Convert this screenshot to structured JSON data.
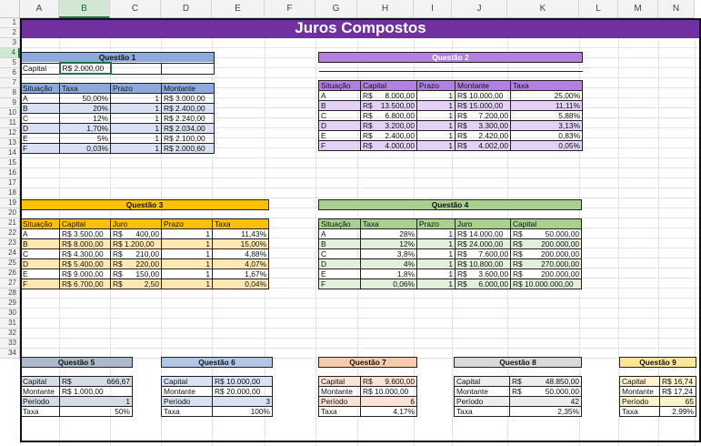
{
  "app": {
    "title": "Juros Compostos"
  },
  "columns": [
    "A",
    "B",
    "C",
    "D",
    "E",
    "F",
    "G",
    "H",
    "I",
    "J",
    "K",
    "L",
    "M",
    "N"
  ],
  "rows": [
    "1",
    "2",
    "3",
    "4",
    "5",
    "6",
    "7",
    "8",
    "9",
    "10",
    "11",
    "12",
    "13",
    "14",
    "15",
    "16",
    "17",
    "18",
    "19",
    "20",
    "21",
    "22",
    "23",
    "24",
    "25",
    "26",
    "27",
    "28",
    "29",
    "30",
    "31",
    "32",
    "33",
    "34"
  ],
  "selection": {
    "cell": "B4"
  },
  "colors": {
    "title_bg": "#7030a0",
    "q1": "#8ea9db",
    "q1_band": "#d9e1f2",
    "q2": "#b180e0",
    "q2_band": "#e4d2f6",
    "q3": "#ffc000",
    "q3_band": "#ffe7b3",
    "q4": "#a9d08e",
    "q4_band": "#e2efda",
    "q5": "#acb9ca",
    "q6": "#b4c6e7",
    "q7": "#f8cbad",
    "q8": "#d9d9d9",
    "q9": "#ffe699"
  },
  "q1": {
    "title": "Questão 1",
    "capital_label": "Capital",
    "capital_value": "R$ 2.000,00",
    "headers": [
      "Situação",
      "Taxa",
      "Prazo",
      "Montante"
    ],
    "rows": [
      [
        "A",
        "50,00%",
        "1",
        "R$ 3.000,00"
      ],
      [
        "B",
        "20%",
        "1",
        "R$ 2.400,00"
      ],
      [
        "C",
        "12%",
        "1",
        "R$ 2.240,00"
      ],
      [
        "D",
        "1,70%",
        "1",
        "R$ 2.034,00"
      ],
      [
        "E",
        "5%",
        "1",
        "R$ 2.100,00"
      ],
      [
        "F",
        "0,03%",
        "1",
        "R$ 2.000,60"
      ]
    ]
  },
  "q2": {
    "title": "Questão 2",
    "headers": [
      "Situação",
      "Capital",
      "Prazo",
      "Montante",
      "Taxa"
    ],
    "rows": [
      [
        "A",
        "R$",
        "8.000,00",
        "1",
        "R$ 10.000,00",
        "25,00%"
      ],
      [
        "B",
        "R$",
        "13.500,00",
        "1",
        "R$ 15.000,00",
        "11,11%"
      ],
      [
        "C",
        "R$",
        "6.800,00",
        "1",
        "R$",
        "7.200,00",
        "5,88%"
      ],
      [
        "D",
        "R$",
        "3.200,00",
        "1",
        "R$",
        "3.300,00",
        "3,13%"
      ],
      [
        "E",
        "R$",
        "2.400,00",
        "1",
        "R$",
        "2.420,00",
        "0,83%"
      ],
      [
        "F",
        "R$",
        "4.000,00",
        "1",
        "R$",
        "4.002,00",
        "0,05%"
      ]
    ]
  },
  "q3": {
    "title": "Questão 3",
    "headers": [
      "Situação",
      "Capital",
      "Juro",
      "Prazo",
      "Taxa"
    ],
    "rows": [
      [
        "A",
        "R$ 3.500,00",
        "R$",
        "400,00",
        "1",
        "11,43%"
      ],
      [
        "B",
        "R$ 8.000,00",
        "R$ 1.200,00",
        "",
        "1",
        "15,00%"
      ],
      [
        "C",
        "R$ 4.300,00",
        "R$",
        "210,00",
        "1",
        "4,88%"
      ],
      [
        "D",
        "R$ 5.400,00",
        "R$",
        "220,00",
        "1",
        "4,07%"
      ],
      [
        "E",
        "R$ 9.000,00",
        "R$",
        "150,00",
        "1",
        "1,67%"
      ],
      [
        "F",
        "R$ 6.700,00",
        "R$",
        "2,50",
        "1",
        "0,04%"
      ]
    ]
  },
  "q4": {
    "title": "Questão 4",
    "headers": [
      "Situação",
      "Taxa",
      "Prazo",
      "Juro",
      "Capital"
    ],
    "rows": [
      [
        "A",
        "28%",
        "1",
        "R$ 14.000,00",
        "R$",
        "50.000,00"
      ],
      [
        "B",
        "12%",
        "1",
        "R$ 24.000,00",
        "R$",
        "200.000,00"
      ],
      [
        "C",
        "3,8%",
        "1",
        "R$",
        "7.600,00",
        "R$",
        "200.000,00"
      ],
      [
        "D",
        "4%",
        "1",
        "R$ 10.800,00",
        "R$",
        "270.000,00"
      ],
      [
        "E",
        "1,8%",
        "1",
        "R$",
        "3.600,00",
        "R$",
        "200.000,00"
      ],
      [
        "F",
        "0,06%",
        "1",
        "R$",
        "6.000,00",
        "R$ 10.000.000,00"
      ]
    ]
  },
  "q5": {
    "title": "Questão 5",
    "capital_label": "Capital",
    "capital_cur": "R$",
    "capital_value": "666,67",
    "montante_label": "Montante",
    "montante_value": "R$ 1.000,00",
    "periodo_label": "Período",
    "periodo_value": "1",
    "taxa_label": "Taxa",
    "taxa_value": "50%"
  },
  "q6": {
    "title": "Questão 6",
    "capital_label": "Capital",
    "capital_value": "R$ 10.000,00",
    "montante_label": "Montante",
    "montante_value": "R$ 20.000,00",
    "periodo_label": "Período",
    "periodo_value": "3",
    "taxa_label": "Taxa",
    "taxa_value": "100%"
  },
  "q7": {
    "title": "Questão 7",
    "capital_label": "Capital",
    "capital_cur": "R$",
    "capital_value": "9.600,00",
    "montante_label": "Montante",
    "montante_value": "R$ 10.000,00",
    "periodo_label": "Período",
    "periodo_value": "6",
    "taxa_label": "Taxa",
    "taxa_value": "4,17%"
  },
  "q8": {
    "title": "Questão 8",
    "capital_label": "Capital",
    "capital_cur": "R$",
    "capital_value": "48.850,00",
    "montante_label": "Montante",
    "montante_cur": "R$",
    "montante_value": "50.000,00",
    "periodo_label": "Período",
    "periodo_value": "42",
    "taxa_label": "Taxa",
    "taxa_value": "2,35%"
  },
  "q9": {
    "title": "Questão 9",
    "capital_label": "Capital",
    "capital_value": "R$ 16,74",
    "montante_label": "Montante",
    "montante_value": "R$ 17,24",
    "periodo_label": "Período",
    "periodo_value": "65",
    "taxa_label": "Taxa",
    "taxa_value": "2,99%"
  }
}
